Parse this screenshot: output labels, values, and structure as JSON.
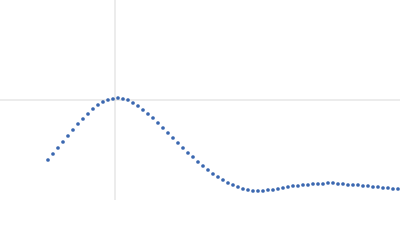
{
  "chart_data": {
    "type": "scatter",
    "x": [
      48,
      53,
      58,
      63,
      68,
      73,
      78,
      83,
      88,
      93,
      98,
      103,
      108,
      113,
      118,
      123,
      128,
      133,
      138,
      143,
      148,
      153,
      158,
      163,
      168,
      173,
      178,
      183,
      188,
      193,
      198,
      203,
      208,
      213,
      218,
      223,
      228,
      233,
      238,
      243,
      248,
      253,
      258,
      263,
      268,
      273,
      278,
      283,
      288,
      293,
      298,
      303,
      308,
      313,
      318,
      323,
      328,
      333,
      338,
      343,
      348,
      353,
      358,
      363,
      368,
      373,
      378,
      383,
      388,
      393,
      398
    ],
    "values": [
      40,
      46,
      52,
      58,
      64,
      70,
      76,
      81,
      86,
      91,
      95,
      98,
      100,
      101,
      102,
      101,
      100,
      97,
      94,
      90,
      86,
      82,
      77,
      72,
      67,
      62,
      57,
      52,
      47,
      43,
      38,
      34,
      30,
      26,
      23,
      20,
      17,
      15,
      13,
      11,
      10,
      9,
      9,
      9,
      10,
      10,
      11,
      12,
      13,
      14,
      14,
      15,
      15,
      16,
      16,
      16,
      17,
      17,
      16,
      16,
      15,
      15,
      15,
      14,
      14,
      13,
      13,
      12,
      12,
      11,
      11
    ],
    "color": "#3a67b0",
    "xlim": [
      0,
      400
    ],
    "ylim": [
      0,
      200
    ],
    "xticks": [
      115
    ],
    "yticks": [
      100
    ],
    "grid": true
  }
}
